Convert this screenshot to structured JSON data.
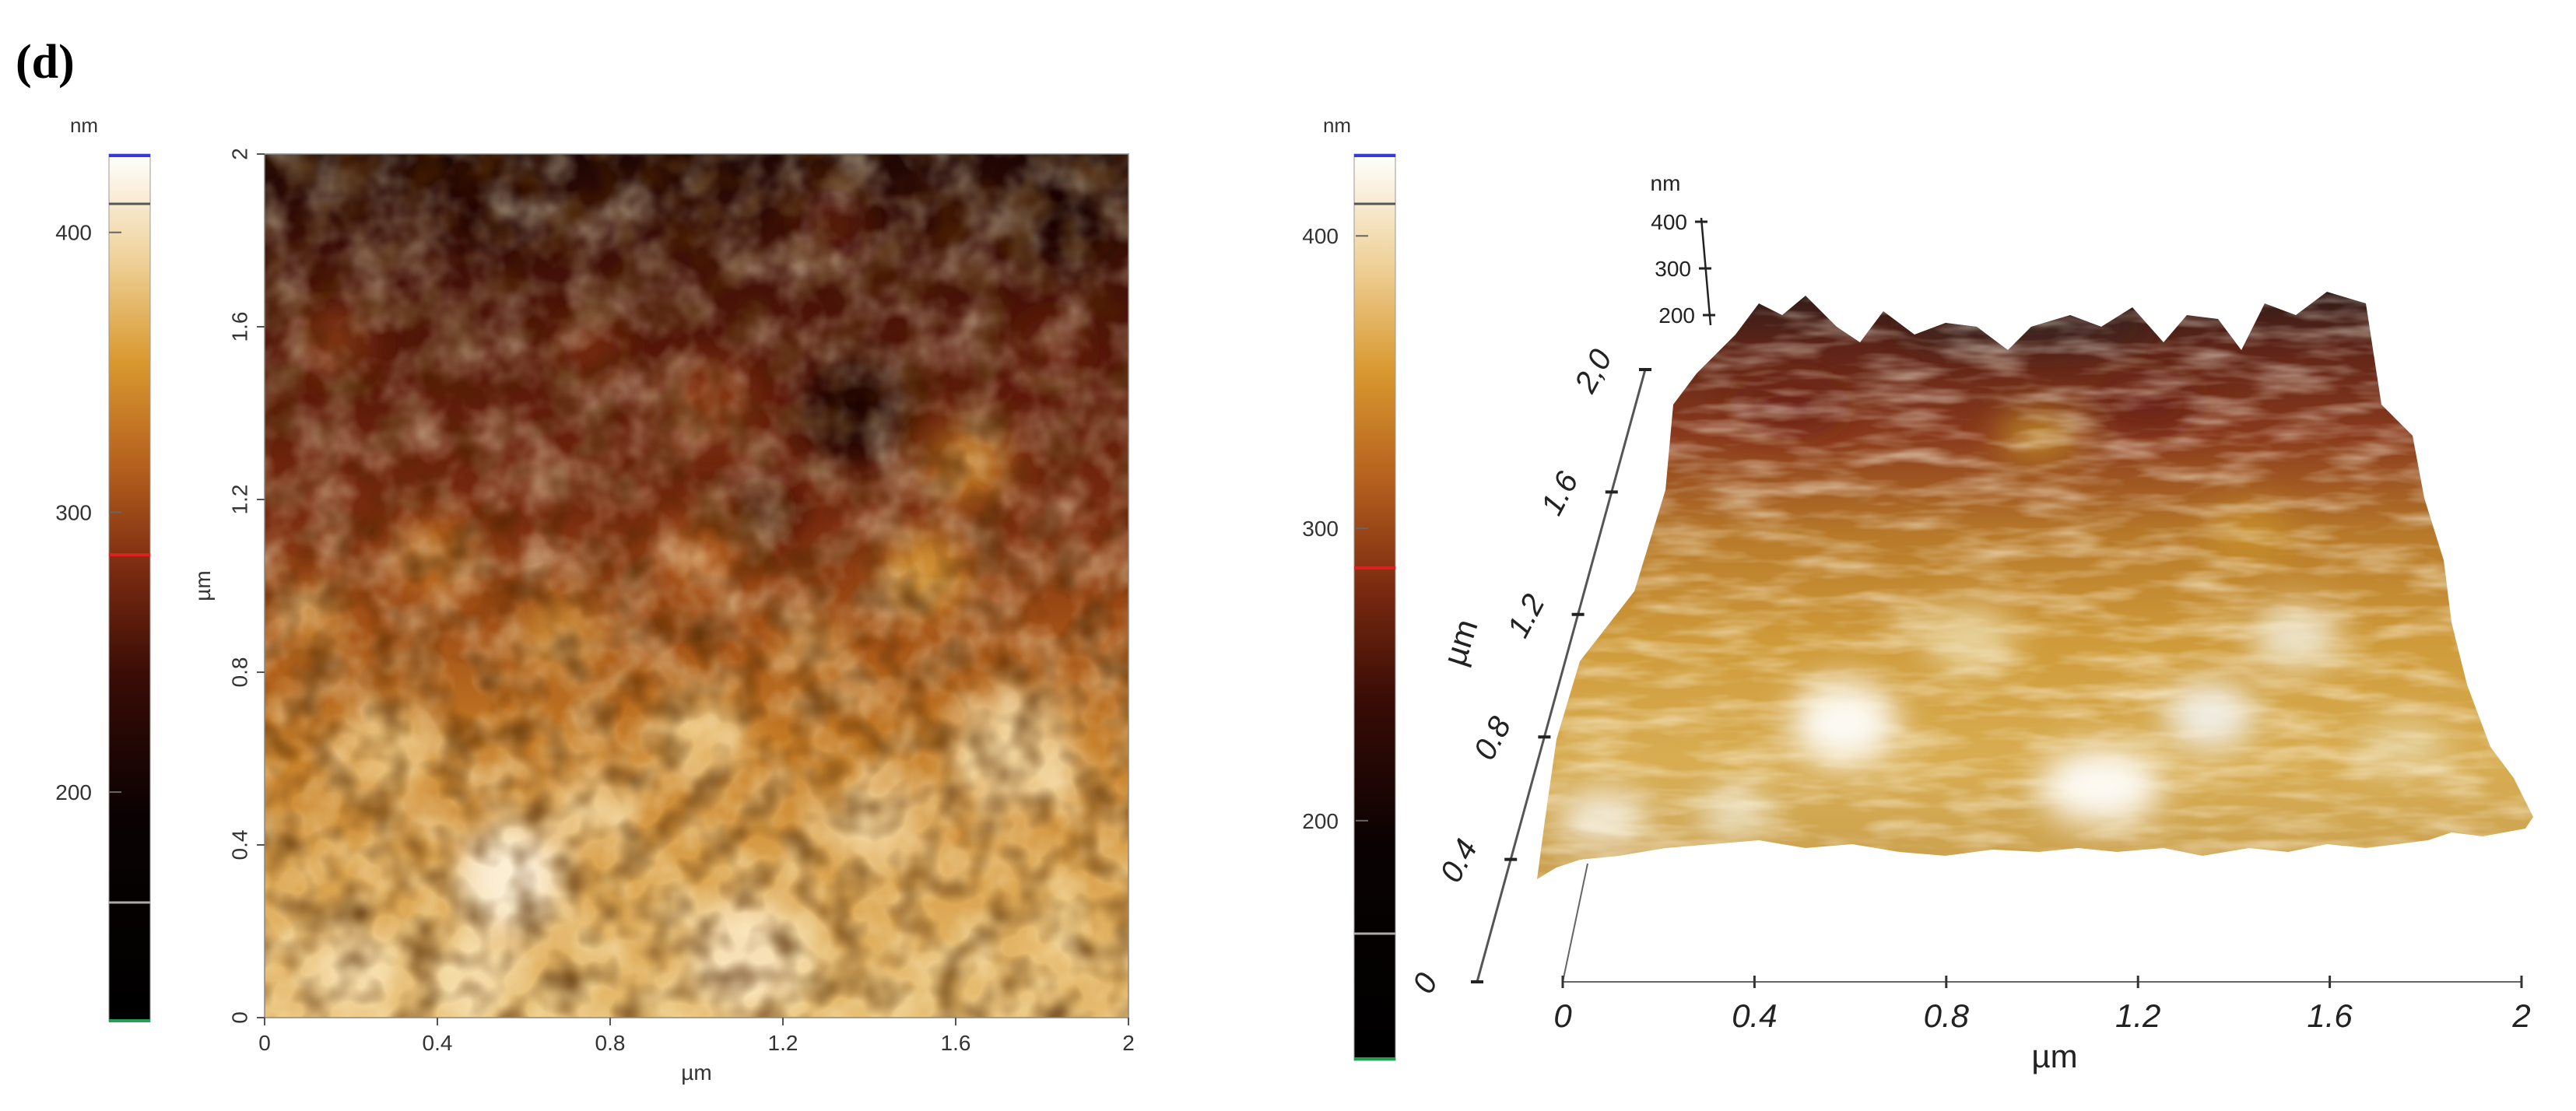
{
  "panel_label": "(d)",
  "left_colorbar": {
    "unit": "nm",
    "ticks": [
      "400",
      "300",
      "200"
    ],
    "tick_values": [
      400,
      300,
      200
    ],
    "range": [
      118,
      428
    ]
  },
  "afm_2d": {
    "x_axis": {
      "ticks": [
        "0",
        "0.4",
        "0.8",
        "1.2",
        "1.6",
        "2"
      ],
      "label": "µm"
    },
    "y_axis": {
      "ticks": [
        "0",
        "0.4",
        "0.8",
        "1.2",
        "1.6",
        "2"
      ],
      "label": "µm"
    }
  },
  "right_colorbar": {
    "unit": "nm",
    "ticks": [
      "400",
      "300",
      "200"
    ],
    "tick_values": [
      400,
      300,
      200
    ],
    "range": [
      118,
      428
    ]
  },
  "afm_3d": {
    "z_axis": {
      "unit": "nm",
      "ticks": [
        "400",
        "300",
        "200"
      ]
    },
    "y_axis": {
      "ticks": [
        "0",
        "0.4",
        "0.8",
        "1.2",
        "1.6",
        "2,0"
      ],
      "label": "µm"
    },
    "x_axis": {
      "ticks": [
        "0",
        "0.4",
        "0.8",
        "1.2",
        "1.6",
        "2"
      ],
      "label": "µm"
    }
  },
  "colors": {
    "colormap": [
      "#000000",
      "#3a0c06",
      "#7a2a10",
      "#b0561c",
      "#d9922e",
      "#eec880",
      "#ffffff"
    ],
    "marker_top": "#3a3ad8",
    "marker_mid": "#e02020",
    "marker_bottom": "#20a050"
  }
}
